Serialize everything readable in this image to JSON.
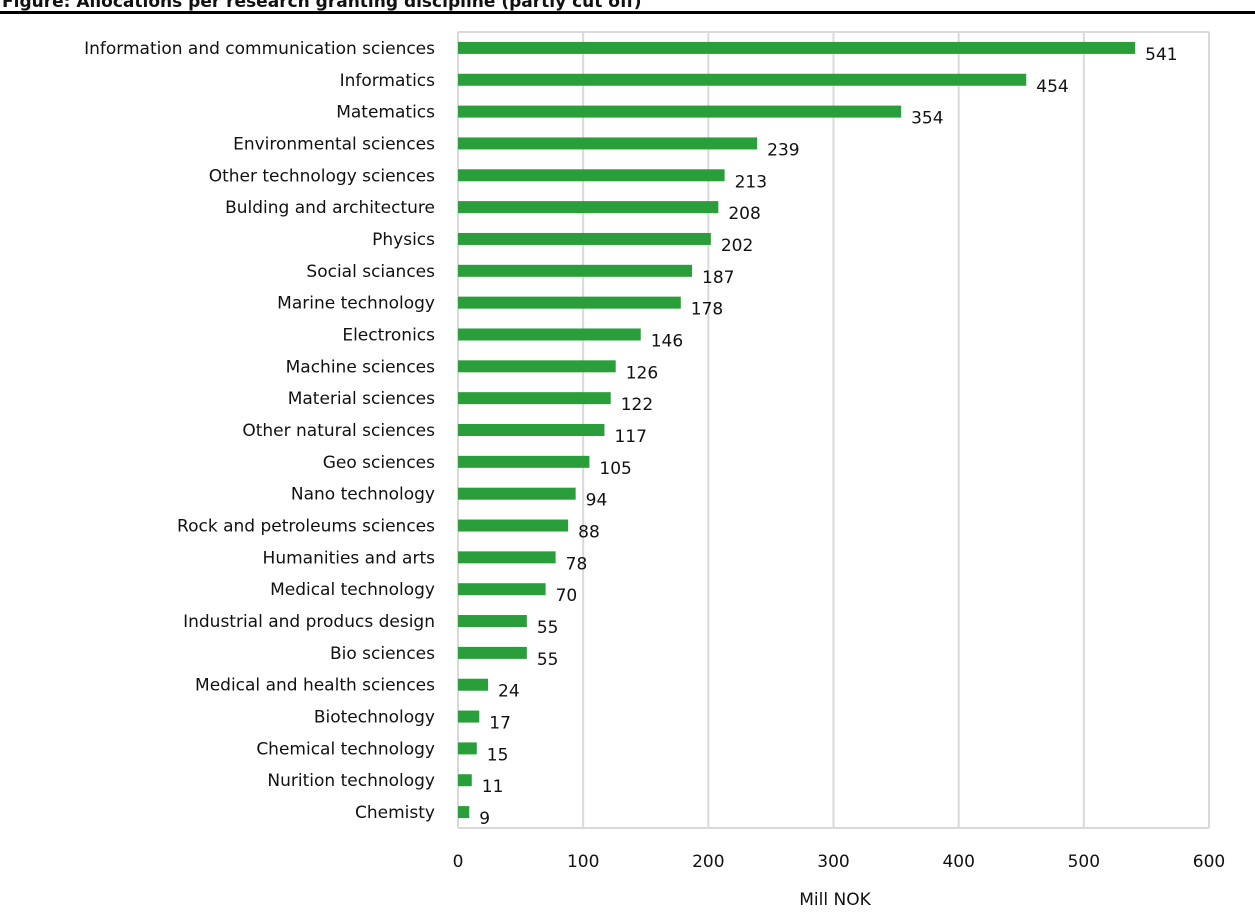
{
  "header": {
    "title": "Figure: Allocations per research granting discipline (partly cut off)"
  },
  "chart_data": {
    "type": "bar",
    "orientation": "horizontal",
    "title": "",
    "xlabel": "Mill NOK",
    "ylabel": "",
    "xlim": [
      0,
      600
    ],
    "xticks": [
      0,
      100,
      200,
      300,
      400,
      500,
      600
    ],
    "grid": true,
    "bar_color": "#2a9e3a",
    "categories": [
      "Information and communication sciences",
      "Informatics",
      "Matematics",
      "Environmental sciences",
      "Other technology sciences",
      "Bulding and architecture",
      "Physics",
      "Social sciances",
      "Marine technology",
      "Electronics",
      "Machine sciences",
      "Material sciences",
      "Other natural sciences",
      "Geo sciences",
      "Nano technology",
      "Rock and petroleums sciences",
      "Humanities and arts",
      "Medical technology",
      "Industrial and producs design",
      "Bio sciences",
      "Medical and health sciences",
      "Biotechnology",
      "Chemical technology",
      "Nurition technology",
      "Chemisty"
    ],
    "values": [
      541,
      454,
      354,
      239,
      213,
      208,
      202,
      187,
      178,
      146,
      126,
      122,
      117,
      105,
      94,
      88,
      78,
      70,
      55,
      55,
      24,
      17,
      15,
      11,
      9
    ]
  }
}
